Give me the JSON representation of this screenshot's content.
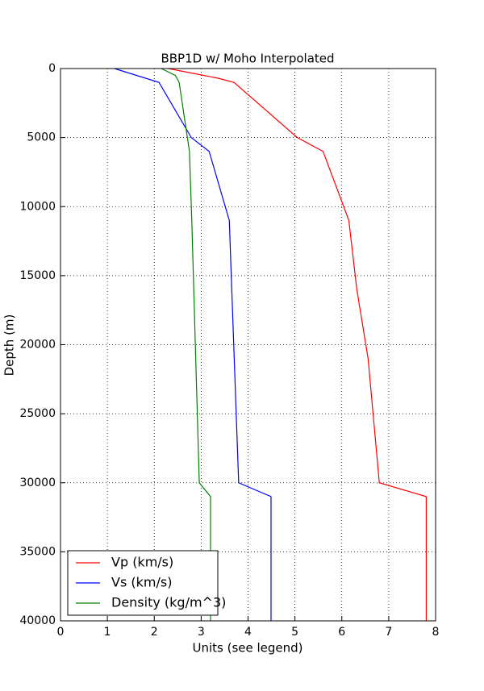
{
  "chart_data": {
    "type": "line",
    "title": "BBP1D w/ Moho Interpolated",
    "x_label": "Units (see legend)",
    "y_label": "Depth (m)",
    "xlim": [
      0,
      8
    ],
    "xticks": [
      0,
      1,
      2,
      3,
      4,
      5,
      6,
      7,
      8
    ],
    "ylim": [
      0,
      40000
    ],
    "yticks": [
      0,
      5000,
      10000,
      15000,
      20000,
      25000,
      30000,
      35000,
      40000
    ],
    "y_inverted": true,
    "grid": true,
    "legend": "lower left",
    "series": [
      {
        "name": "Vp (km/s)",
        "color": "#ff0000",
        "values": [
          2.3,
          3.36,
          3.7,
          5.05,
          5.6,
          6.15,
          6.32,
          6.56,
          6.8,
          7.8,
          7.8
        ],
        "depth": [
          0,
          700,
          1000,
          5000,
          6000,
          11000,
          16000,
          21000,
          30000,
          31000,
          40000
        ]
      },
      {
        "name": "Vs (km/s)",
        "color": "#0000ff",
        "values": [
          1.15,
          2.1,
          2.79,
          3.17,
          3.6,
          3.8,
          4.49,
          4.49
        ],
        "depth": [
          0,
          1000,
          5000,
          6000,
          11000,
          30000,
          31000,
          40000
        ]
      },
      {
        "name": "Density (kg/m^3)",
        "color": "#008000",
        "values": [
          2.15,
          2.45,
          2.53,
          2.75,
          2.8,
          2.96,
          3.2,
          3.2
        ],
        "depth": [
          0,
          500,
          1000,
          6000,
          11000,
          30000,
          31000,
          40000
        ]
      }
    ]
  }
}
